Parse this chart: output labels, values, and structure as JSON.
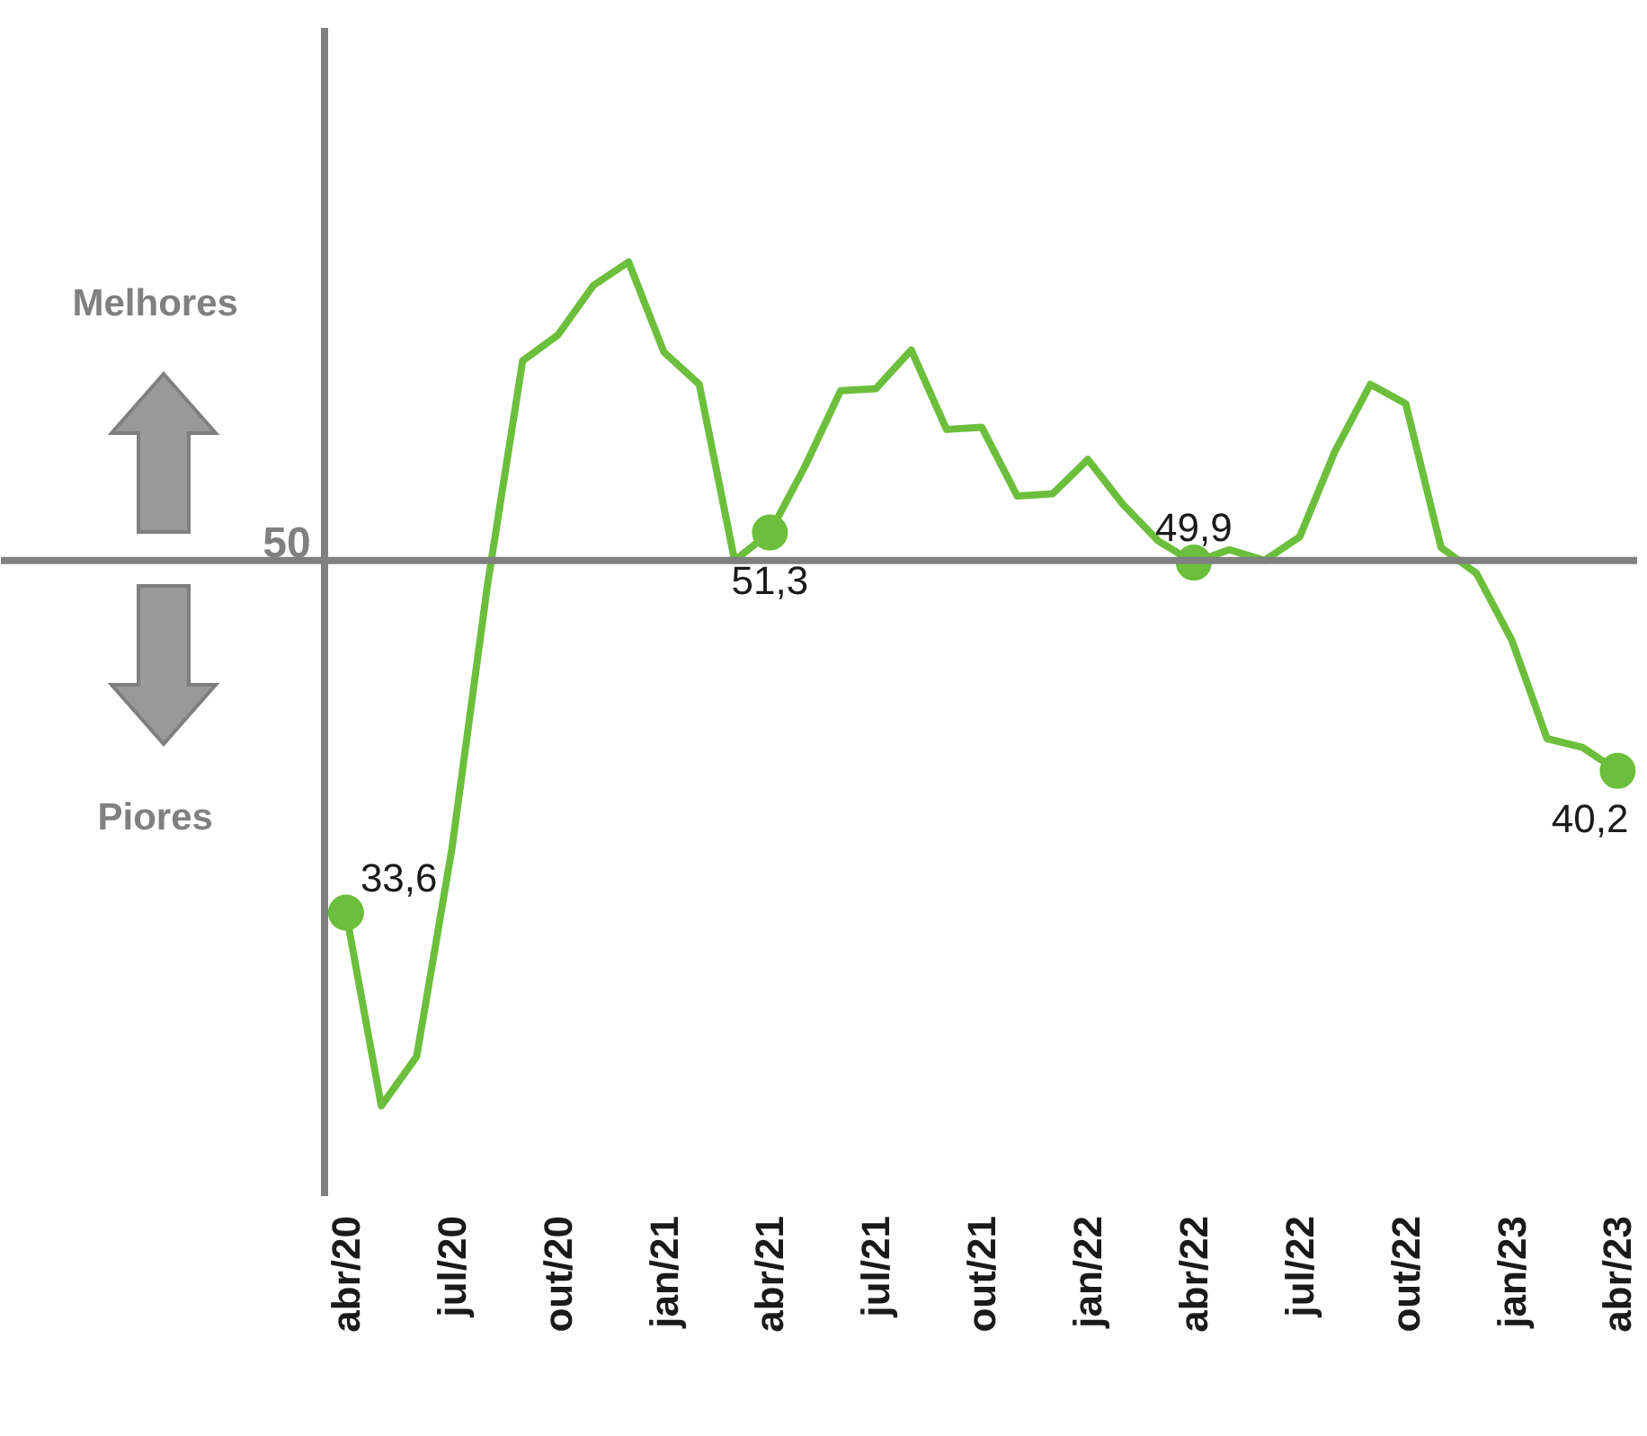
{
  "chart_data": {
    "type": "line",
    "categories": [
      "abr/20",
      null,
      null,
      "jul/20",
      null,
      null,
      "out/20",
      null,
      null,
      "jan/21",
      null,
      null,
      "abr/21",
      null,
      null,
      "jul/21",
      null,
      null,
      "out/21",
      null,
      null,
      "jan/22",
      null,
      null,
      "abr/22",
      null,
      null,
      "jul/22",
      null,
      null,
      "out/22",
      null,
      null,
      "jan/23",
      null,
      null,
      "abr/23"
    ],
    "series": [
      {
        "color": "#6cbf3c",
        "values": [
          33.6,
          24.6,
          26.9,
          36.6,
          48.8,
          59.3,
          60.5,
          62.8,
          63.9,
          59.7,
          58.2,
          50.0,
          51.3,
          54.4,
          57.9,
          58.0,
          59.8,
          56.1,
          56.2,
          53.0,
          53.1,
          54.7,
          52.6,
          50.9,
          49.9,
          50.5,
          50.0,
          51.1,
          55.1,
          58.2,
          57.3,
          50.6,
          49.4,
          46.3,
          41.7,
          41.3,
          40.2
        ],
        "value_labels": [
          "33,6",
          null,
          null,
          null,
          null,
          null,
          null,
          null,
          null,
          null,
          null,
          null,
          "51,3",
          null,
          null,
          null,
          null,
          null,
          null,
          null,
          null,
          null,
          null,
          null,
          "49,9",
          null,
          null,
          null,
          null,
          null,
          null,
          null,
          null,
          null,
          null,
          null,
          "40,2"
        ]
      }
    ],
    "ylim": [
      20.4,
      74.8
    ],
    "ref_lines": [
      {
        "axis": "y",
        "value": 50,
        "label": "50",
        "color": "#808080"
      }
    ],
    "annotations": [
      "Melhores",
      "Piores"
    ],
    "grid": false
  }
}
